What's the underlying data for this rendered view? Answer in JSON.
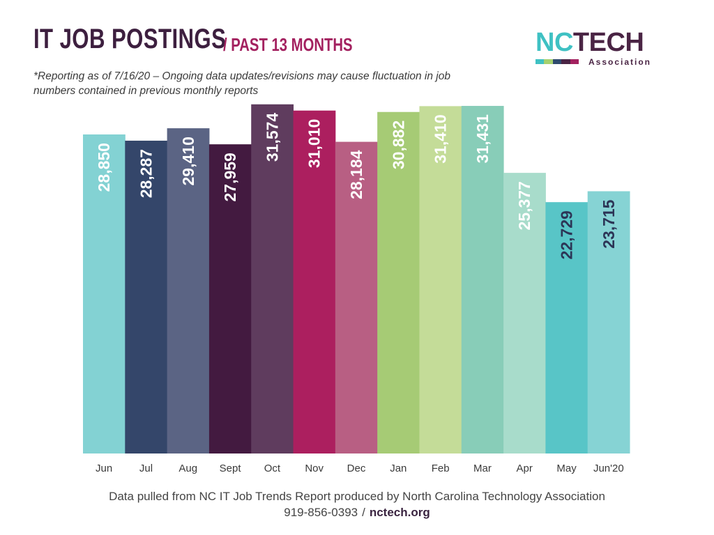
{
  "header": {
    "title": "IT JOB POSTINGS",
    "subtitle": "/ PAST 13 MONTHS",
    "note": "*Reporting as of 7/16/20 – Ongoing data updates/revisions may cause fluctuation in job numbers contained in previous monthly reports"
  },
  "logo": {
    "nc": "NC",
    "tech": "TECH",
    "association": "Association",
    "stripe_colors": [
      "#3fc1c3",
      "#a6d06e",
      "#2f4a6e",
      "#4a2444",
      "#a3215f"
    ]
  },
  "footer": {
    "source": "Data pulled from NC IT Job Trends Report produced by North Carolina Technology Association",
    "phone": "919-856-0393",
    "separator": "/",
    "website": "nctech.org"
  },
  "chart_data": {
    "type": "bar",
    "title": "IT JOB POSTINGS / PAST 13 MONTHS",
    "xlabel": "",
    "ylabel": "",
    "ylim": [
      0,
      32000
    ],
    "grid": false,
    "categories": [
      "Jun",
      "Jul",
      "Aug",
      "Sept",
      "Oct",
      "Nov",
      "Dec",
      "Jan",
      "Feb",
      "Mar",
      "Apr",
      "May",
      "Jun'20"
    ],
    "values": [
      28850,
      28287,
      29410,
      27959,
      31574,
      31010,
      28184,
      30882,
      31410,
      31431,
      25377,
      22729,
      23715
    ],
    "value_labels": [
      "28,850",
      "28,287",
      "29,410",
      "27,959",
      "31,574",
      "31,010",
      "28,184",
      "30,882",
      "31,410",
      "31,431",
      "25,377",
      "22,729",
      "23,715"
    ],
    "colors": [
      "#83d2d3",
      "#34466a",
      "#5b6484",
      "#431a40",
      "#5f3c5e",
      "#ac1f5f",
      "#b85f83",
      "#a6cb75",
      "#c4dc98",
      "#88cdb8",
      "#a8dccb",
      "#58c5c7",
      "#86d3d4"
    ],
    "label_colors": [
      "#ffffff",
      "#ffffff",
      "#ffffff",
      "#ffffff",
      "#ffffff",
      "#ffffff",
      "#ffffff",
      "#ffffff",
      "#ffffff",
      "#ffffff",
      "#ffffff",
      "#2c3556",
      "#2c3556"
    ]
  }
}
